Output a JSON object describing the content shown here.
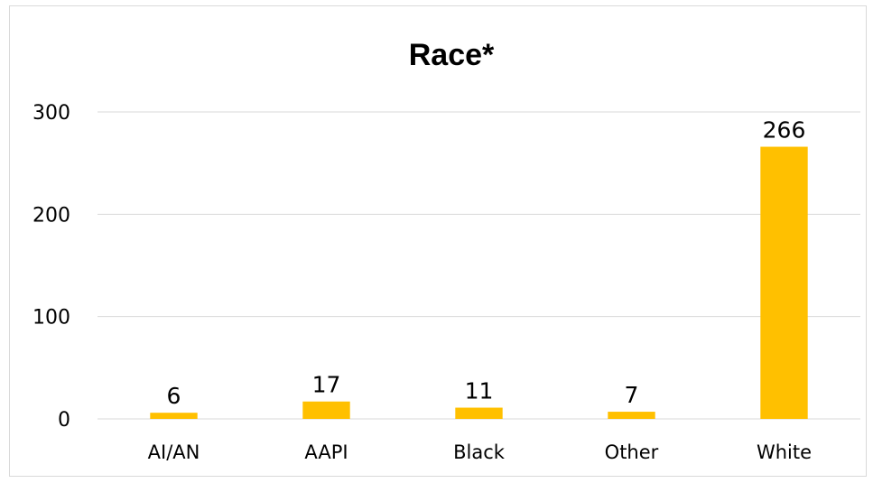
{
  "chart_data": {
    "type": "bar",
    "title": "Race*",
    "xlabel": "",
    "ylabel": "",
    "categories": [
      "AI/AN",
      "AAPI",
      "Black",
      "Other",
      "White"
    ],
    "values": [
      6,
      17,
      11,
      7,
      266
    ],
    "ylim": [
      0,
      300
    ],
    "yticks": [
      0,
      100,
      200,
      300
    ],
    "grid": true,
    "legend": "none",
    "bar_color": "#FFC000"
  }
}
